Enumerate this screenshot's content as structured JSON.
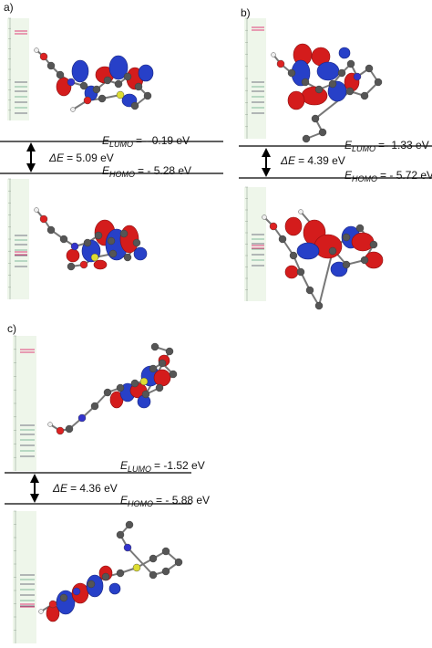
{
  "panels": [
    {
      "label": "a)",
      "lumo": {
        "symbol": "E",
        "sub": "LUMO",
        "value": "= - 0.19 eV"
      },
      "gap": {
        "symbol": "ΔE",
        "value": "= 5.09 eV"
      },
      "homo": {
        "symbol": "E",
        "sub": "HOMO",
        "value": "= - 5.28 eV"
      }
    },
    {
      "label": "b)",
      "lumo": {
        "symbol": "E",
        "sub": "LUMO",
        "value": "= -1.33 eV"
      },
      "gap": {
        "symbol": "ΔE",
        "value": "= 4.39 eV"
      },
      "homo": {
        "symbol": "E",
        "sub": "HOMO",
        "value": "= - 5.72 eV"
      }
    },
    {
      "label": "c)",
      "lumo": {
        "symbol": "E",
        "sub": "LUMO",
        "value": "= -1.52 eV"
      },
      "gap": {
        "symbol": "ΔE",
        "value": "= 4.36 eV"
      },
      "homo": {
        "symbol": "E",
        "sub": "HOMO",
        "value": "= - 5.88 eV"
      }
    }
  ]
}
